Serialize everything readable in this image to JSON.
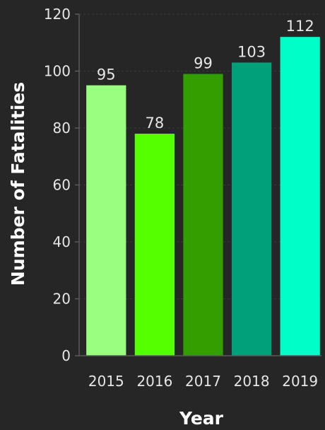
{
  "chart_data": {
    "type": "bar",
    "title": "",
    "xlabel": "Year",
    "ylabel": "Number of Fatalities",
    "categories": [
      "2015",
      "2016",
      "2017",
      "2018",
      "2019"
    ],
    "values": [
      95,
      78,
      99,
      103,
      112
    ],
    "data_labels": [
      "95",
      "78",
      "99",
      "103",
      "112"
    ],
    "bar_colors": [
      "#99ff80",
      "#55ff00",
      "#339e00",
      "#00a07a",
      "#00ffc8"
    ],
    "ylim": [
      0,
      120
    ],
    "yticks": [
      0,
      20,
      40,
      60,
      80,
      100,
      120
    ],
    "grid": true,
    "legend": false
  },
  "theme": {
    "background": "#262626",
    "text": "#e6e6e6"
  }
}
